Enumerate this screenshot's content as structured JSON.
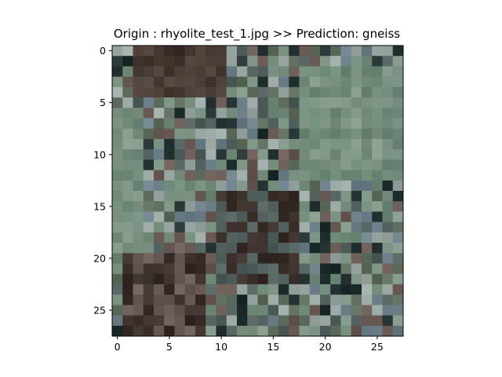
{
  "chart_data": {
    "type": "heatmap",
    "title": "Origin : rhyolite_test_1.jpg >> Prediction: gneiss",
    "image_size": [
      28,
      28
    ],
    "x_ticks": [
      0,
      5,
      10,
      15,
      20,
      25
    ],
    "y_ticks": [
      0,
      5,
      10,
      15,
      20,
      25
    ],
    "xlim": [
      -0.5,
      27.5
    ],
    "ylim": [
      27.5,
      -0.5
    ],
    "palette": {
      "dark_brown": "#3a2f2b",
      "brown": "#4b3c36",
      "gray_green": "#6f8a78",
      "sage": "#7f9585",
      "slate": "#51605d",
      "dark_teal": "#22302f",
      "blue_gray": "#6c7f88",
      "light_gray": "#9aa7a3",
      "olive": "#5e6c5d",
      "mauve": "#6a5b57"
    }
  }
}
